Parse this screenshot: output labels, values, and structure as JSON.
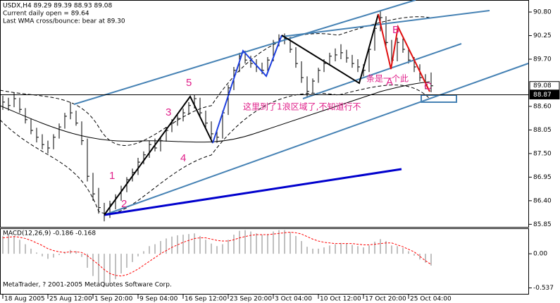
{
  "chart_data": [
    {
      "type": "ohlc",
      "title": "USDX,H4  89.29 89.39 88.93 89.08",
      "notes": [
        "Current daily open = 89.64",
        "Last WMA cross/bounce: bear at 89.30"
      ],
      "color": "#000000",
      "close": [
        88.7,
        88.62,
        88.78,
        88.53,
        88.29,
        88.04,
        87.88,
        87.71,
        87.63,
        87.88,
        88.12,
        88.37,
        88.45,
        88.21,
        87.8,
        86.97,
        86.56,
        86.24,
        86.07,
        86.32,
        86.48,
        86.65,
        86.89,
        87.06,
        87.3,
        87.47,
        87.71,
        87.63,
        87.8,
        88.04,
        88.21,
        88.32,
        88.45,
        88.62,
        88.78,
        88.45,
        88.21,
        87.96,
        87.88,
        88.45,
        89.03,
        89.44,
        89.77,
        89.68,
        89.6,
        89.52,
        89.44,
        89.68,
        90.09,
        90.18,
        90.18,
        89.93,
        89.6,
        89.27,
        88.95,
        89.19,
        89.44,
        89.6,
        89.77,
        89.8,
        89.85,
        89.73,
        89.6,
        89.52,
        89.44,
        89.93,
        90.42,
        90.67,
        90.09,
        89.68,
        90.09,
        89.93,
        89.68,
        89.52,
        89.27,
        89.11,
        89.08
      ],
      "high": [
        88.85,
        88.8,
        88.92,
        88.8,
        88.56,
        88.32,
        88.1,
        87.95,
        87.8,
        87.95,
        88.2,
        88.45,
        88.7,
        88.5,
        88.25,
        87.85,
        87.05,
        86.7,
        86.35,
        86.4,
        86.55,
        86.75,
        86.95,
        87.15,
        87.4,
        87.55,
        87.8,
        87.85,
        87.9,
        88.12,
        88.3,
        88.4,
        88.55,
        88.7,
        88.87,
        88.8,
        88.5,
        88.25,
        88.05,
        88.5,
        89.1,
        89.52,
        89.85,
        89.9,
        89.78,
        89.7,
        89.62,
        89.75,
        90.15,
        90.28,
        90.3,
        90.22,
        89.98,
        89.65,
        89.3,
        89.25,
        89.5,
        89.7,
        89.85,
        89.95,
        90.05,
        89.92,
        89.8,
        89.7,
        89.58,
        90.0,
        90.5,
        90.82,
        90.7,
        90.15,
        90.2,
        90.18,
        89.98,
        89.75,
        89.58,
        89.35,
        89.39
      ],
      "low": [
        88.52,
        88.5,
        88.58,
        88.45,
        88.2,
        87.95,
        87.76,
        87.6,
        87.5,
        87.6,
        87.85,
        88.08,
        88.3,
        88.15,
        87.7,
        86.85,
        86.4,
        86.1,
        85.92,
        86.0,
        86.2,
        86.4,
        86.6,
        86.85,
        87.0,
        87.25,
        87.4,
        87.55,
        87.55,
        87.78,
        88.0,
        88.15,
        88.25,
        88.4,
        88.55,
        88.38,
        88.1,
        87.85,
        87.75,
        87.85,
        88.4,
        88.98,
        89.4,
        89.6,
        89.5,
        89.4,
        89.35,
        89.4,
        89.65,
        90.0,
        90.05,
        89.85,
        89.5,
        89.15,
        88.8,
        88.9,
        89.15,
        89.4,
        89.55,
        89.65,
        89.7,
        89.62,
        89.5,
        89.4,
        89.3,
        89.4,
        89.9,
        90.35,
        90.0,
        89.55,
        89.65,
        89.85,
        89.6,
        89.4,
        89.18,
        89.0,
        88.93
      ],
      "ylim": [
        85.79,
        91.08
      ],
      "yticks": [
        {
          "value": 90.8,
          "label": "90.80"
        },
        90.25,
        {
          "value": 89.7,
          "label": "89.70"
        },
        {
          "value": 88.6,
          "label": "88.60"
        },
        88.05,
        {
          "value": 87.5,
          "label": "87.50"
        },
        86.95,
        {
          "value": 86.4,
          "label": "86.40"
        },
        85.85
      ],
      "price_labels": [
        89.08,
        88.87
      ],
      "xticks": [
        {
          "value": 0,
          "label": "18 Aug 2005"
        },
        {
          "value": 8,
          "label": "25 Aug 12:00"
        },
        {
          "value": 16,
          "label": "1 Sep 20:00"
        },
        {
          "value": 24,
          "label": "9 Sep 04:00"
        },
        {
          "value": 32,
          "label": "16 Sep 12:00"
        },
        {
          "value": 40,
          "label": "23 Sep 20:00"
        },
        {
          "value": 48,
          "label": "3 Oct 04:00"
        },
        {
          "value": 56,
          "label": "10 Oct 12:00"
        },
        {
          "value": 64,
          "label": "17 Oct 20:00"
        },
        {
          "value": 72,
          "label": "25 Oct 04:00"
        }
      ],
      "wave_labels": [
        "1",
        "2",
        "3",
        "4",
        "5",
        "A",
        "B",
        "C"
      ],
      "annotations": [
        "这里到了1浪区域了,不知道行不",
        "条是一个此"
      ],
      "footer": "MetaTrader, ? 2001-2005 MetaQuotes Software Corp."
    },
    {
      "type": "macd",
      "title": "MACD(12,26,9) -0.186 -0.168",
      "color": "#c0c0c0",
      "signal_color": "#ff0000",
      "values": [
        0.28,
        0.3,
        0.28,
        0.22,
        0.15,
        0.08,
        0.02,
        -0.04,
        -0.08,
        -0.06,
        -0.02,
        0.03,
        0.06,
        0.04,
        -0.05,
        -0.22,
        -0.35,
        -0.46,
        -0.52,
        -0.48,
        -0.4,
        -0.31,
        -0.22,
        -0.13,
        -0.04,
        0.04,
        0.12,
        0.15,
        0.2,
        0.24,
        0.27,
        0.29,
        0.3,
        0.31,
        0.32,
        0.28,
        0.22,
        0.16,
        0.12,
        0.15,
        0.22,
        0.3,
        0.36,
        0.37,
        0.35,
        0.32,
        0.3,
        0.31,
        0.35,
        0.37,
        0.37,
        0.34,
        0.28,
        0.2,
        0.11,
        0.08,
        0.08,
        0.1,
        0.13,
        0.15,
        0.17,
        0.16,
        0.14,
        0.12,
        0.1,
        0.13,
        0.19,
        0.23,
        0.2,
        0.13,
        0.12,
        0.09,
        0.04,
        -0.03,
        -0.09,
        -0.14,
        -0.186
      ],
      "signal": [
        0.25,
        0.26,
        0.27,
        0.26,
        0.24,
        0.21,
        0.17,
        0.13,
        0.08,
        0.05,
        0.03,
        0.02,
        0.03,
        0.03,
        0.02,
        -0.03,
        -0.1,
        -0.17,
        -0.25,
        -0.31,
        -0.34,
        -0.35,
        -0.33,
        -0.29,
        -0.24,
        -0.18,
        -0.12,
        -0.06,
        0.0,
        0.05,
        0.1,
        0.14,
        0.18,
        0.21,
        0.24,
        0.25,
        0.25,
        0.23,
        0.21,
        0.2,
        0.2,
        0.22,
        0.25,
        0.27,
        0.29,
        0.3,
        0.3,
        0.3,
        0.31,
        0.32,
        0.33,
        0.34,
        0.33,
        0.31,
        0.27,
        0.23,
        0.2,
        0.18,
        0.17,
        0.16,
        0.16,
        0.16,
        0.16,
        0.15,
        0.14,
        0.14,
        0.15,
        0.16,
        0.17,
        0.17,
        0.14,
        0.11,
        0.07,
        0.03,
        -0.04,
        -0.11,
        -0.168
      ],
      "ylim": [
        -0.63,
        0.4
      ],
      "yticks": [
        {
          "value": 0,
          "label": "0.00"
        },
        -0.537
      ]
    }
  ]
}
